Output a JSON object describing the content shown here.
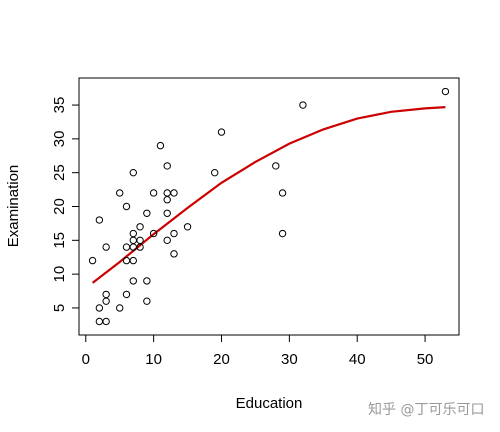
{
  "chart_data": {
    "type": "scatter",
    "title": "",
    "xlabel": "Education",
    "ylabel": "Examination",
    "xlim": [
      -1,
      55
    ],
    "ylim": [
      1,
      39
    ],
    "xticks": [
      0,
      10,
      20,
      30,
      40,
      50
    ],
    "yticks": [
      5,
      10,
      15,
      20,
      25,
      30,
      35
    ],
    "grid": false,
    "legend": "none",
    "point_color": "#000000",
    "line_color": "#cc0000",
    "points": [
      {
        "x": 1,
        "y": 12
      },
      {
        "x": 2,
        "y": 3
      },
      {
        "x": 2,
        "y": 5
      },
      {
        "x": 2,
        "y": 18
      },
      {
        "x": 3,
        "y": 3
      },
      {
        "x": 3,
        "y": 6
      },
      {
        "x": 3,
        "y": 7
      },
      {
        "x": 3,
        "y": 14
      },
      {
        "x": 5,
        "y": 5
      },
      {
        "x": 5,
        "y": 22
      },
      {
        "x": 6,
        "y": 7
      },
      {
        "x": 6,
        "y": 12
      },
      {
        "x": 6,
        "y": 14
      },
      {
        "x": 6,
        "y": 20
      },
      {
        "x": 7,
        "y": 9
      },
      {
        "x": 7,
        "y": 12
      },
      {
        "x": 7,
        "y": 14
      },
      {
        "x": 7,
        "y": 15
      },
      {
        "x": 7,
        "y": 16
      },
      {
        "x": 7,
        "y": 25
      },
      {
        "x": 8,
        "y": 14
      },
      {
        "x": 8,
        "y": 15
      },
      {
        "x": 8,
        "y": 17
      },
      {
        "x": 9,
        "y": 6
      },
      {
        "x": 9,
        "y": 9
      },
      {
        "x": 9,
        "y": 19
      },
      {
        "x": 10,
        "y": 16
      },
      {
        "x": 10,
        "y": 22
      },
      {
        "x": 11,
        "y": 29
      },
      {
        "x": 12,
        "y": 15
      },
      {
        "x": 12,
        "y": 19
      },
      {
        "x": 12,
        "y": 21
      },
      {
        "x": 12,
        "y": 22
      },
      {
        "x": 12,
        "y": 26
      },
      {
        "x": 13,
        "y": 13
      },
      {
        "x": 13,
        "y": 16
      },
      {
        "x": 13,
        "y": 22
      },
      {
        "x": 15,
        "y": 17
      },
      {
        "x": 19,
        "y": 25
      },
      {
        "x": 20,
        "y": 31
      },
      {
        "x": 28,
        "y": 26
      },
      {
        "x": 29,
        "y": 16
      },
      {
        "x": 29,
        "y": 22
      },
      {
        "x": 32,
        "y": 35
      },
      {
        "x": 53,
        "y": 37
      }
    ],
    "fit_line": [
      {
        "x": 1,
        "y": 8.7
      },
      {
        "x": 5,
        "y": 11.8
      },
      {
        "x": 10,
        "y": 15.9
      },
      {
        "x": 15,
        "y": 19.8
      },
      {
        "x": 20,
        "y": 23.5
      },
      {
        "x": 25,
        "y": 26.6
      },
      {
        "x": 30,
        "y": 29.3
      },
      {
        "x": 35,
        "y": 31.4
      },
      {
        "x": 40,
        "y": 33.0
      },
      {
        "x": 45,
        "y": 34.0
      },
      {
        "x": 50,
        "y": 34.5
      },
      {
        "x": 53,
        "y": 34.7
      }
    ]
  },
  "watermark": "知乎 @丁可乐可口"
}
